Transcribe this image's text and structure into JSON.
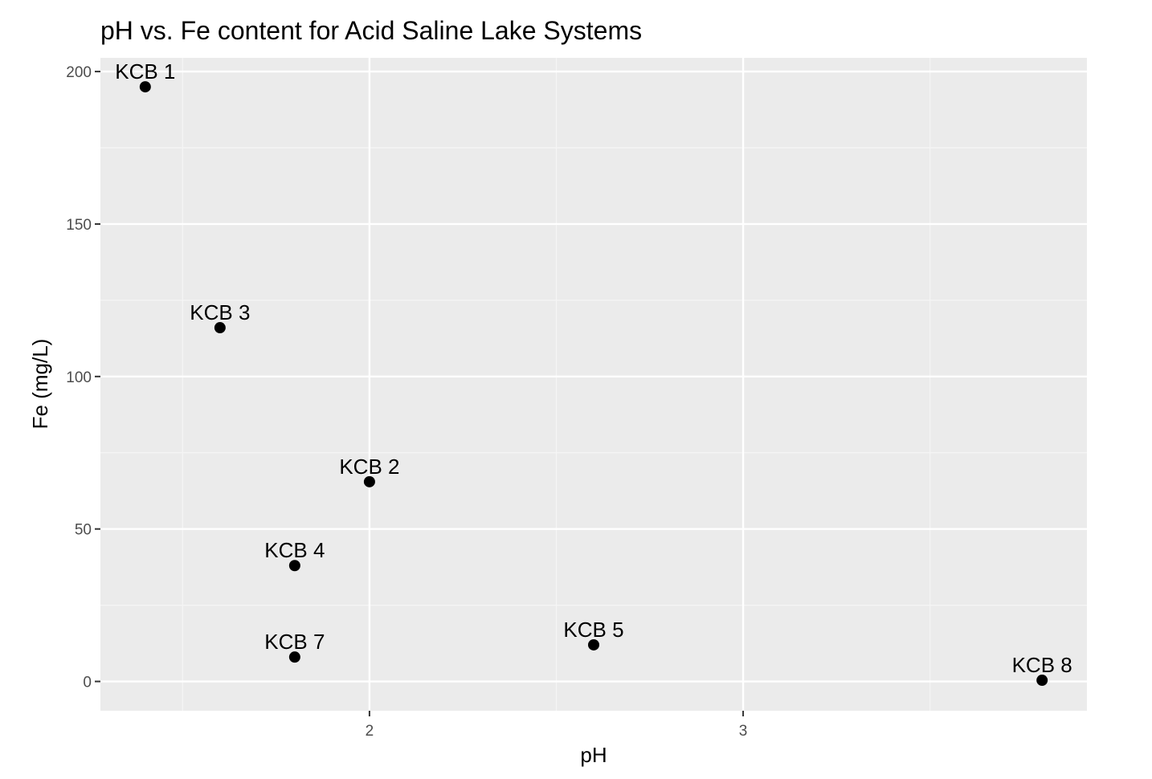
{
  "chart_data": {
    "type": "scatter",
    "title": "pH vs. Fe content for Acid Saline Lake Systems",
    "xlabel": "pH",
    "ylabel": "Fe (mg/L)",
    "xlim": [
      1.28,
      3.92
    ],
    "ylim": [
      -9.6,
      204.5
    ],
    "x_ticks": [
      2,
      3
    ],
    "x_minor_ticks": [
      1.5,
      2.5,
      3.5
    ],
    "y_ticks": [
      0,
      50,
      100,
      150,
      200
    ],
    "y_minor_ticks": [
      25,
      75,
      125,
      175
    ],
    "grid": true,
    "legend": "none",
    "points": [
      {
        "label": "KCB 1",
        "x": 1.4,
        "y": 195
      },
      {
        "label": "KCB 3",
        "x": 1.6,
        "y": 116
      },
      {
        "label": "KCB 2",
        "x": 2.0,
        "y": 65.5
      },
      {
        "label": "KCB 4",
        "x": 1.8,
        "y": 38
      },
      {
        "label": "KCB 7",
        "x": 1.8,
        "y": 8
      },
      {
        "label": "KCB 5",
        "x": 2.6,
        "y": 12
      },
      {
        "label": "KCB 8",
        "x": 3.8,
        "y": 0.4
      }
    ],
    "colors": {
      "panel": "#ebebeb",
      "grid_major": "#ffffff",
      "grid_minor": "#f5f5f5",
      "point": "#000000",
      "tick": "#333333"
    }
  }
}
